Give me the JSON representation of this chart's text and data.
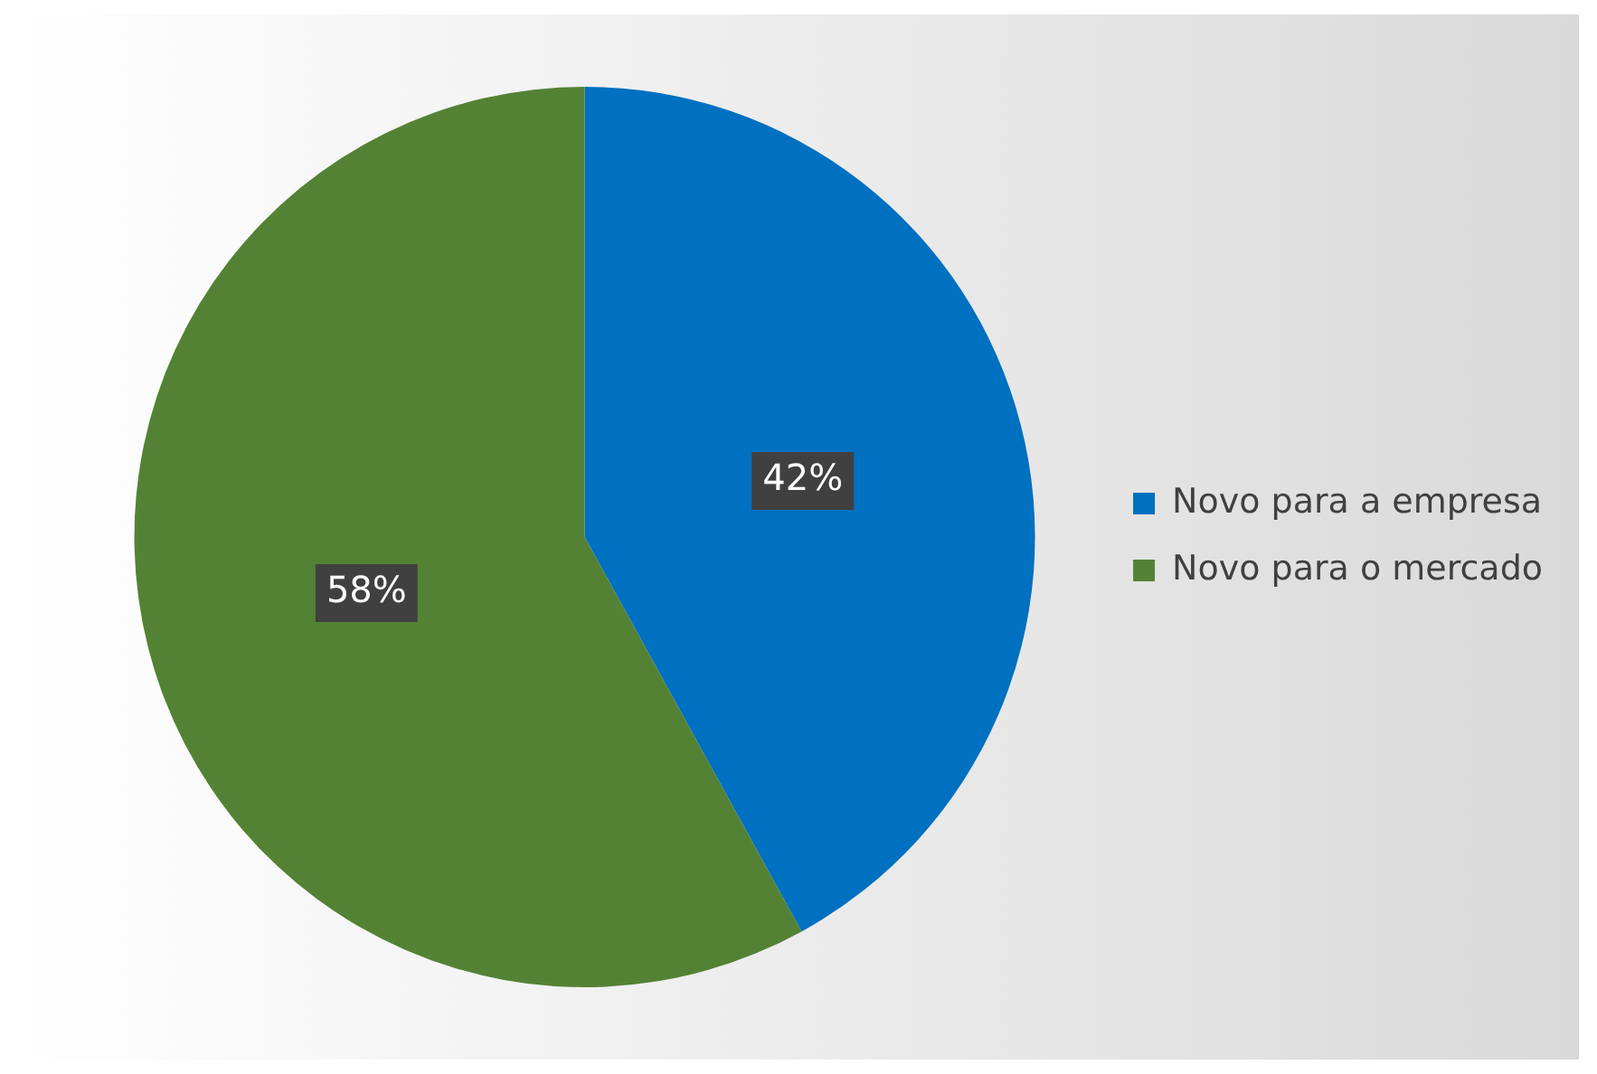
{
  "chart_data": {
    "type": "pie",
    "categories": [
      "Novo para a empresa",
      "Novo para o mercado"
    ],
    "values": [
      42,
      58
    ],
    "colors": [
      "#0070c0",
      "#548235"
    ],
    "value_labels": [
      "42%",
      "58%"
    ],
    "legend": "right"
  }
}
